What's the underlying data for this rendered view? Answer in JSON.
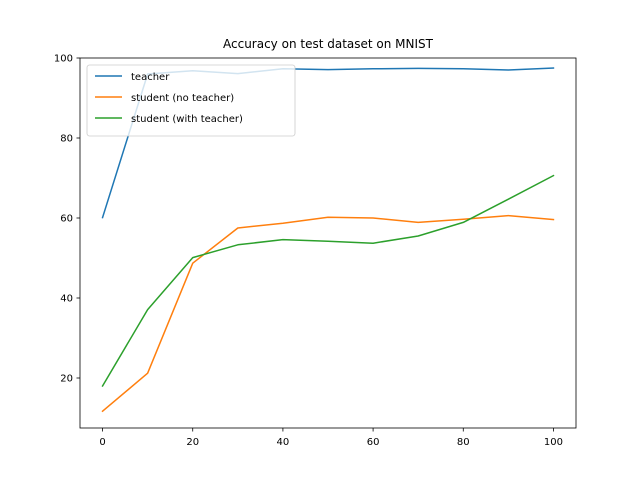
{
  "chart_data": {
    "type": "line",
    "title": "Accuracy on test dataset on MNIST",
    "xlabel": "",
    "ylabel": "",
    "x": [
      0,
      10,
      20,
      30,
      40,
      50,
      60,
      70,
      80,
      90,
      100
    ],
    "xlim": [
      -5,
      105
    ],
    "ylim": [
      7.5,
      100
    ],
    "xticks": [
      0,
      20,
      40,
      60,
      80,
      100
    ],
    "yticks": [
      20,
      40,
      60,
      80,
      100
    ],
    "grid": false,
    "legend_position": "upper-left",
    "series": [
      {
        "name": "teacher",
        "color": "#1f77b4",
        "values": [
          60.1,
          96.0,
          96.8,
          96.1,
          97.3,
          97.1,
          97.3,
          97.4,
          97.3,
          97.0,
          97.5
        ]
      },
      {
        "name": "student (no teacher)",
        "color": "#ff7f0e",
        "values": [
          11.7,
          21.2,
          48.7,
          57.5,
          58.7,
          60.2,
          60.0,
          58.9,
          59.7,
          60.6,
          59.6
        ]
      },
      {
        "name": "student (with teacher)",
        "color": "#2ca02c",
        "values": [
          18.0,
          37.1,
          50.1,
          53.3,
          54.6,
          54.2,
          53.7,
          55.5,
          58.9,
          64.7,
          70.6
        ]
      }
    ]
  }
}
